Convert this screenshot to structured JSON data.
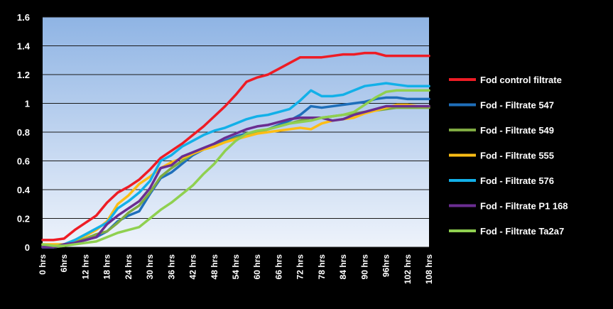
{
  "chart_data": {
    "type": "line",
    "title": "",
    "xlabel": "",
    "ylabel": "",
    "ylim": [
      0,
      1.6
    ],
    "yticks": [
      0,
      0.2,
      0.4,
      0.6,
      0.8,
      1,
      1.2,
      1.4,
      1.6
    ],
    "ytick_labels": [
      "0",
      "0.2",
      "0.4",
      "0.6",
      "0.8",
      "1",
      "1.2",
      "1.4",
      "1.6"
    ],
    "x_labels": [
      "0 hrs",
      "6hrs",
      "12 hrs",
      "18 hrs",
      "24 hrs",
      "30 hrs",
      "36 hrs",
      "42 hrs",
      "48 hrs",
      "54 hrs",
      "60 hrs",
      "66 hrs",
      "72 hrs",
      "78 hrs",
      "84 hrs",
      "90 hrs",
      "96hrs",
      "102 hrs",
      "108 hrs"
    ],
    "x_hours": [
      0,
      3,
      6,
      9,
      12,
      15,
      18,
      21,
      24,
      27,
      30,
      33,
      36,
      39,
      42,
      45,
      48,
      51,
      54,
      57,
      60,
      63,
      66,
      69,
      72,
      75,
      78,
      81,
      84,
      87,
      90,
      93,
      96,
      99,
      102,
      105,
      108
    ],
    "grid": true,
    "legend_position": "right",
    "series": [
      {
        "name": "Fod control filtrate",
        "color": "#ee1c25",
        "values": [
          0.05,
          0.05,
          0.06,
          0.12,
          0.17,
          0.22,
          0.31,
          0.38,
          0.42,
          0.47,
          0.54,
          0.62,
          0.67,
          0.72,
          0.78,
          0.84,
          0.91,
          0.98,
          1.06,
          1.15,
          1.18,
          1.2,
          1.24,
          1.28,
          1.32,
          1.32,
          1.32,
          1.33,
          1.34,
          1.34,
          1.35,
          1.35,
          1.33,
          1.33,
          1.33,
          1.33,
          1.33
        ]
      },
      {
        "name": "Fod - Filtrate 547",
        "color": "#1f6fba",
        "values": [
          0.0,
          0.0,
          0.01,
          0.04,
          0.05,
          0.07,
          0.11,
          0.18,
          0.22,
          0.25,
          0.37,
          0.48,
          0.52,
          0.58,
          0.64,
          0.68,
          0.71,
          0.74,
          0.77,
          0.79,
          0.8,
          0.82,
          0.85,
          0.88,
          0.92,
          0.98,
          0.97,
          0.98,
          0.99,
          1.0,
          1.01,
          1.03,
          1.04,
          1.04,
          1.03,
          1.03,
          1.03
        ]
      },
      {
        "name": "Fod - Filtrate 549",
        "color": "#7faa42",
        "values": [
          0.01,
          0.0,
          0.01,
          0.04,
          0.06,
          0.09,
          0.11,
          0.17,
          0.24,
          0.29,
          0.38,
          0.49,
          0.55,
          0.6,
          0.65,
          0.68,
          0.7,
          0.73,
          0.76,
          0.78,
          0.8,
          0.82,
          0.84,
          0.86,
          0.88,
          0.9,
          0.9,
          0.91,
          0.92,
          0.93,
          0.94,
          0.95,
          0.96,
          0.97,
          0.97,
          0.97,
          0.97
        ]
      },
      {
        "name": "Fod - Filtrate 555",
        "color": "#fdbd15",
        "values": [
          0.02,
          0.02,
          0.02,
          0.05,
          0.08,
          0.12,
          0.18,
          0.3,
          0.36,
          0.44,
          0.49,
          0.55,
          0.59,
          0.62,
          0.65,
          0.68,
          0.7,
          0.73,
          0.75,
          0.77,
          0.79,
          0.8,
          0.81,
          0.82,
          0.83,
          0.82,
          0.86,
          0.88,
          0.89,
          0.9,
          0.93,
          0.95,
          0.97,
          0.99,
          0.99,
          0.98,
          0.98
        ]
      },
      {
        "name": "Fod - Filtrate 576",
        "color": "#12b0e8",
        "values": [
          0.0,
          0.0,
          0.02,
          0.05,
          0.09,
          0.13,
          0.17,
          0.27,
          0.32,
          0.38,
          0.46,
          0.6,
          0.64,
          0.7,
          0.74,
          0.78,
          0.81,
          0.83,
          0.86,
          0.89,
          0.91,
          0.92,
          0.94,
          0.96,
          1.02,
          1.09,
          1.05,
          1.05,
          1.06,
          1.09,
          1.12,
          1.13,
          1.14,
          1.13,
          1.12,
          1.12,
          1.12
        ]
      },
      {
        "name": "Fod - Filtrate P1 168",
        "color": "#6a2d91",
        "values": [
          0.0,
          0.0,
          0.02,
          0.03,
          0.05,
          0.07,
          0.16,
          0.22,
          0.27,
          0.32,
          0.41,
          0.55,
          0.57,
          0.63,
          0.66,
          0.69,
          0.72,
          0.76,
          0.79,
          0.82,
          0.84,
          0.85,
          0.87,
          0.89,
          0.9,
          0.9,
          0.9,
          0.88,
          0.89,
          0.92,
          0.94,
          0.96,
          0.98,
          0.98,
          0.98,
          0.98,
          0.98
        ]
      },
      {
        "name": "Fod - Filtrate Ta2a7",
        "color": "#8fd050",
        "values": [
          0.02,
          0.01,
          0.01,
          0.02,
          0.03,
          0.04,
          0.07,
          0.1,
          0.12,
          0.14,
          0.2,
          0.26,
          0.31,
          0.37,
          0.43,
          0.51,
          0.58,
          0.67,
          0.74,
          0.79,
          0.81,
          0.82,
          0.84,
          0.86,
          0.87,
          0.88,
          0.9,
          0.91,
          0.92,
          0.94,
          0.99,
          1.04,
          1.08,
          1.09,
          1.09,
          1.09,
          1.09
        ]
      }
    ]
  }
}
